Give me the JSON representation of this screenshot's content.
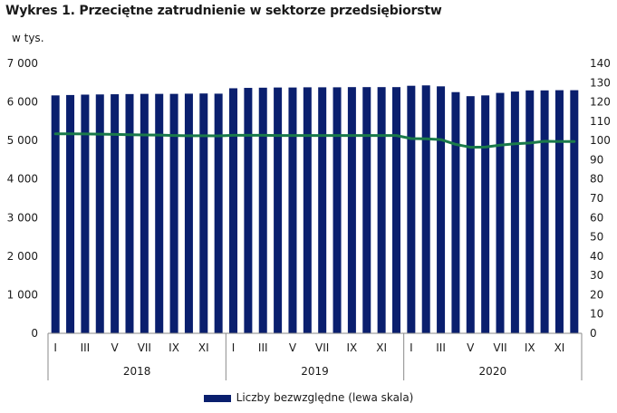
{
  "title": "Wykres 1. Przeciętne zatrudnienie w sektorze przedsiębiorstw",
  "colors": {
    "bar": "#0a1f6e",
    "line": "#1a7a4a",
    "axis": "#8a8a8a",
    "grid": "#dcdcdc"
  },
  "chart_data": {
    "type": "bar",
    "y_unit_label": "w tys.",
    "left_axis": {
      "min": 0,
      "max": 7000,
      "step": 1000,
      "tick_labels": [
        "0",
        "1 000",
        "2 000",
        "3 000",
        "4 000",
        "5 000",
        "6 000",
        "7 000"
      ]
    },
    "right_axis": {
      "min": 0,
      "max": 140,
      "step": 10,
      "tick_labels": [
        "0",
        "10",
        "20",
        "30",
        "40",
        "50",
        "60",
        "70",
        "80",
        "90",
        "100",
        "110",
        "120",
        "130",
        "140"
      ]
    },
    "years": [
      "2018",
      "2019",
      "2020"
    ],
    "month_labels": [
      "I",
      "",
      "III",
      "",
      "V",
      "",
      "VII",
      "",
      "IX",
      "",
      "XI",
      ""
    ],
    "series": [
      {
        "name": "Liczby bezwzględne (lewa skala)",
        "type": "bar",
        "axis": "left",
        "values": [
          6170,
          6180,
          6190,
          6195,
          6200,
          6205,
          6210,
          6210,
          6210,
          6215,
          6220,
          6215,
          6355,
          6365,
          6370,
          6375,
          6375,
          6380,
          6380,
          6380,
          6385,
          6385,
          6385,
          6385,
          6420,
          6430,
          6405,
          6255,
          6150,
          6170,
          6235,
          6270,
          6300,
          6300,
          6305,
          6305
        ]
      },
      {
        "type": "line",
        "axis": "right",
        "values": [
          103.5,
          103.5,
          103.4,
          103.3,
          103.2,
          103.0,
          102.9,
          102.8,
          102.6,
          102.5,
          102.5,
          102.4,
          102.7,
          102.7,
          102.7,
          102.6,
          102.6,
          102.6,
          102.6,
          102.6,
          102.6,
          102.6,
          102.6,
          102.6,
          101.0,
          100.9,
          100.5,
          98.0,
          96.5,
          96.6,
          97.6,
          98.3,
          98.7,
          99.6,
          99.5,
          99.5
        ]
      }
    ]
  }
}
